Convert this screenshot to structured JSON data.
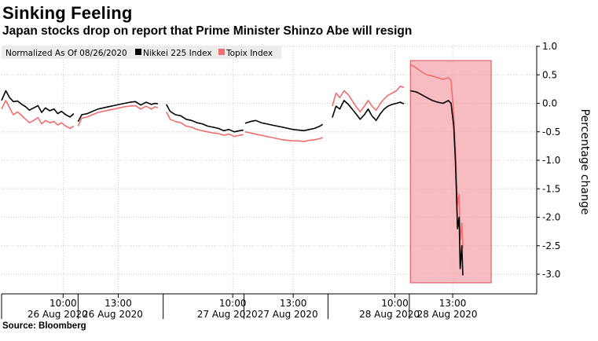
{
  "title": "Sinking Feeling",
  "subtitle": "Japan stocks drop on report that Prime Minister Shinzo Abe will resign",
  "source": "Source: Bloomberg",
  "chart_data": {
    "type": "line",
    "legend": {
      "header": "Normalized As Of 08/26/2020",
      "placement": "top-left",
      "entries": [
        {
          "name": "Nikkei 225 Index",
          "color": "#000000"
        },
        {
          "name": "Topix Index",
          "color": "#f26d6d"
        }
      ]
    },
    "ylabel": "Percentage change",
    "y_axis_side": "right",
    "ylim": [
      -3.2,
      1.0
    ],
    "y_ticks": [
      "1.0",
      "0.5",
      "0.0",
      "-0.5",
      "-1.0",
      "-1.5",
      "-2.0",
      "-2.5",
      "-3.0"
    ],
    "grid": true,
    "x_ticks": [
      {
        "time": "10:00",
        "date": "26 Aug 2020"
      },
      {
        "time": "13:00",
        "date": "26 Aug 2020"
      },
      {
        "time": "10:00",
        "date": "27 Aug 2020"
      },
      {
        "time": "13:00",
        "date": "27 Aug 2020"
      },
      {
        "time": "10:00",
        "date": "28 Aug 2020"
      },
      {
        "time": "13:00",
        "date": "28 Aug 2020"
      }
    ],
    "highlight": {
      "x_start": 0.764,
      "x_end": 0.915,
      "y_start": -3.15,
      "y_end": 0.75,
      "color": "#f4a4ad"
    },
    "series": [
      {
        "name": "Nikkei 225 Index",
        "color": "#000000",
        "segments": [
          {
            "x": [
              0.0,
              0.008,
              0.015,
              0.022,
              0.03,
              0.038,
              0.045,
              0.052,
              0.06,
              0.068,
              0.075,
              0.082,
              0.09,
              0.098,
              0.105,
              0.112,
              0.12,
              0.128,
              0.135
            ],
            "y": [
              0.05,
              0.22,
              0.1,
              0.03,
              0.04,
              -0.02,
              -0.06,
              -0.12,
              -0.08,
              -0.04,
              -0.16,
              -0.08,
              -0.13,
              -0.1,
              -0.18,
              -0.14,
              -0.2,
              -0.24,
              -0.18
            ]
          },
          {
            "x": [
              0.143,
              0.15,
              0.16,
              0.17,
              0.18,
              0.19,
              0.2,
              0.21,
              0.22,
              0.23,
              0.24,
              0.25,
              0.26,
              0.27,
              0.28,
              0.287,
              0.292
            ],
            "y": [
              -0.32,
              -0.2,
              -0.18,
              -0.14,
              -0.1,
              -0.08,
              -0.06,
              -0.04,
              -0.02,
              0.0,
              0.02,
              0.03,
              -0.03,
              0.02,
              -0.02,
              0.0,
              -0.01
            ]
          },
          {
            "x": [
              0.308,
              0.315,
              0.325,
              0.335,
              0.345,
              0.355,
              0.365,
              0.375,
              0.385,
              0.395,
              0.405,
              0.415,
              0.425,
              0.435,
              0.445,
              0.452
            ],
            "y": [
              -0.02,
              -0.14,
              -0.2,
              -0.22,
              -0.28,
              -0.3,
              -0.34,
              -0.36,
              -0.4,
              -0.42,
              -0.44,
              -0.48,
              -0.46,
              -0.5,
              -0.48,
              -0.47
            ]
          },
          {
            "x": [
              0.455,
              0.465,
              0.475,
              0.485,
              0.495,
              0.505,
              0.515,
              0.525,
              0.535,
              0.545,
              0.555,
              0.565,
              0.575,
              0.585,
              0.595,
              0.6
            ],
            "y": [
              -0.35,
              -0.32,
              -0.3,
              -0.34,
              -0.36,
              -0.38,
              -0.4,
              -0.42,
              -0.44,
              -0.46,
              -0.47,
              -0.48,
              -0.46,
              -0.44,
              -0.4,
              -0.37
            ]
          },
          {
            "x": [
              0.618,
              0.625,
              0.632,
              0.64,
              0.648,
              0.655,
              0.662,
              0.67,
              0.678,
              0.685,
              0.692,
              0.7,
              0.708,
              0.715,
              0.722,
              0.73,
              0.738,
              0.745,
              0.752
            ],
            "y": [
              -0.25,
              -0.05,
              -0.1,
              0.05,
              -0.02,
              -0.1,
              -0.18,
              -0.28,
              -0.2,
              -0.1,
              -0.22,
              -0.3,
              -0.18,
              -0.1,
              -0.05,
              -0.02,
              0.0,
              0.02,
              -0.01
            ]
          },
          {
            "x": [
              0.764,
              0.775,
              0.785,
              0.795,
              0.805,
              0.815,
              0.825,
              0.835,
              0.84,
              0.845,
              0.848,
              0.85,
              0.852,
              0.855,
              0.857,
              0.86,
              0.862
            ],
            "y": [
              0.22,
              0.2,
              0.15,
              0.1,
              0.05,
              0.02,
              0.0,
              0.05,
              0.0,
              -0.4,
              -1.0,
              -1.6,
              -2.2,
              -2.0,
              -2.9,
              -2.5,
              -3.02
            ]
          }
        ]
      },
      {
        "name": "Topix Index",
        "color": "#f26d6d",
        "segments": [
          {
            "x": [
              0.0,
              0.008,
              0.015,
              0.022,
              0.03,
              0.038,
              0.045,
              0.052,
              0.06,
              0.068,
              0.075,
              0.082,
              0.09,
              0.098,
              0.105,
              0.112,
              0.12,
              0.128,
              0.135
            ],
            "y": [
              -0.1,
              0.05,
              -0.08,
              -0.2,
              -0.15,
              -0.22,
              -0.28,
              -0.34,
              -0.3,
              -0.25,
              -0.36,
              -0.3,
              -0.34,
              -0.32,
              -0.38,
              -0.34,
              -0.4,
              -0.44,
              -0.4
            ]
          },
          {
            "x": [
              0.143,
              0.15,
              0.16,
              0.17,
              0.18,
              0.19,
              0.2,
              0.21,
              0.22,
              0.23,
              0.24,
              0.25,
              0.26,
              0.27,
              0.28,
              0.287,
              0.292
            ],
            "y": [
              -0.4,
              -0.26,
              -0.24,
              -0.2,
              -0.16,
              -0.14,
              -0.12,
              -0.1,
              -0.08,
              -0.06,
              -0.05,
              -0.04,
              -0.1,
              -0.05,
              -0.1,
              -0.06,
              -0.08
            ]
          },
          {
            "x": [
              0.308,
              0.315,
              0.325,
              0.335,
              0.345,
              0.355,
              0.365,
              0.375,
              0.385,
              0.395,
              0.405,
              0.415,
              0.425,
              0.435,
              0.445,
              0.452
            ],
            "y": [
              -0.15,
              -0.28,
              -0.32,
              -0.34,
              -0.4,
              -0.42,
              -0.46,
              -0.48,
              -0.5,
              -0.52,
              -0.53,
              -0.56,
              -0.54,
              -0.58,
              -0.56,
              -0.55
            ]
          },
          {
            "x": [
              0.455,
              0.465,
              0.475,
              0.485,
              0.495,
              0.505,
              0.515,
              0.525,
              0.535,
              0.545,
              0.555,
              0.565,
              0.575,
              0.585,
              0.595,
              0.6
            ],
            "y": [
              -0.5,
              -0.52,
              -0.54,
              -0.56,
              -0.58,
              -0.6,
              -0.62,
              -0.64,
              -0.65,
              -0.66,
              -0.66,
              -0.67,
              -0.65,
              -0.64,
              -0.62,
              -0.6
            ]
          },
          {
            "x": [
              0.618,
              0.625,
              0.632,
              0.64,
              0.648,
              0.655,
              0.662,
              0.67,
              0.678,
              0.685,
              0.692,
              0.7,
              0.708,
              0.715,
              0.722,
              0.73,
              0.738,
              0.745,
              0.752
            ],
            "y": [
              -0.05,
              0.18,
              0.1,
              0.22,
              0.15,
              0.05,
              -0.05,
              -0.15,
              -0.05,
              0.05,
              -0.05,
              -0.12,
              0.0,
              0.08,
              0.14,
              0.18,
              0.22,
              0.3,
              0.28
            ]
          },
          {
            "x": [
              0.764,
              0.775,
              0.785,
              0.795,
              0.805,
              0.815,
              0.825,
              0.835,
              0.84,
              0.845,
              0.848,
              0.85,
              0.852,
              0.855,
              0.857,
              0.86,
              0.862
            ],
            "y": [
              0.68,
              0.62,
              0.55,
              0.5,
              0.48,
              0.45,
              0.42,
              0.45,
              0.4,
              -0.2,
              -0.8,
              -1.3,
              -1.8,
              -1.6,
              -2.4,
              -2.1,
              -2.55
            ]
          }
        ]
      }
    ]
  }
}
